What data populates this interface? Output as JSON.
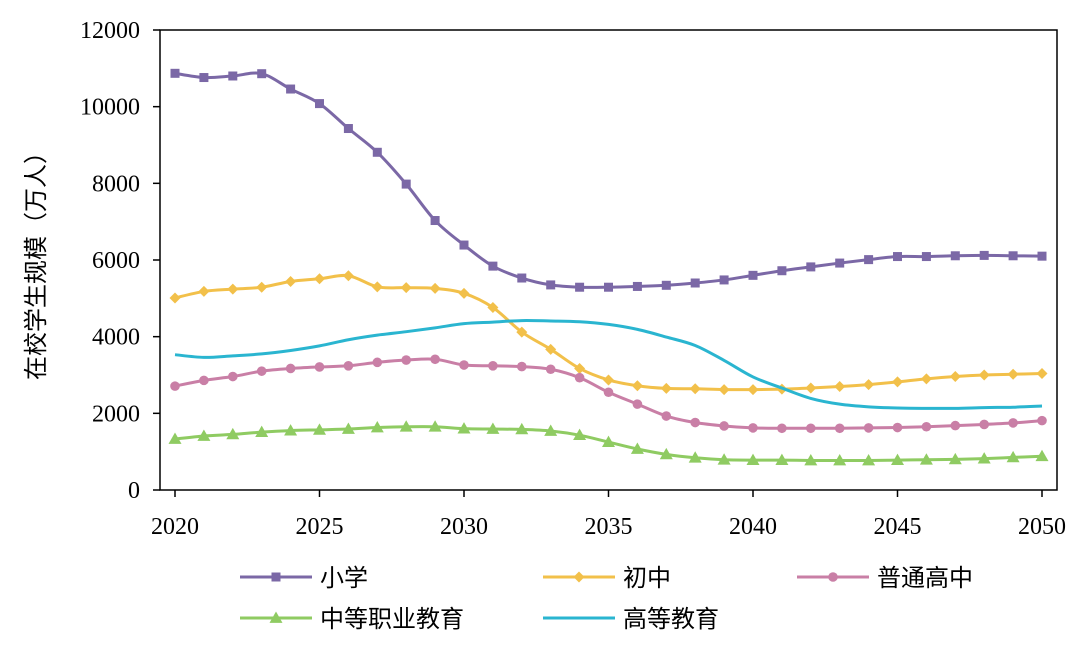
{
  "chart_data": {
    "type": "line",
    "title": "",
    "xlabel": "",
    "ylabel": "在校学生规模（万人）",
    "x": [
      2020,
      2021,
      2022,
      2023,
      2024,
      2025,
      2026,
      2027,
      2028,
      2029,
      2030,
      2031,
      2032,
      2033,
      2034,
      2035,
      2036,
      2037,
      2038,
      2039,
      2040,
      2041,
      2042,
      2043,
      2044,
      2045,
      2046,
      2047,
      2048,
      2049,
      2050
    ],
    "xticks": [
      "2020",
      "2025",
      "2030",
      "2035",
      "2040",
      "2045",
      "2050"
    ],
    "yticks": [
      "0",
      "2000",
      "4000",
      "6000",
      "8000",
      "10000",
      "12000"
    ],
    "xlim": [
      2020,
      2050
    ],
    "ylim": [
      0,
      12000
    ],
    "grid": false,
    "legend_position": "bottom",
    "series": [
      {
        "name": "小学",
        "marker": "square",
        "color": "#7B68A6",
        "values": [
          10870,
          10760,
          10800,
          10860,
          10460,
          10080,
          9430,
          8810,
          7980,
          7030,
          6390,
          5840,
          5530,
          5350,
          5290,
          5290,
          5310,
          5340,
          5400,
          5480,
          5600,
          5720,
          5820,
          5920,
          6010,
          6090,
          6090,
          6110,
          6120,
          6110,
          6100
        ]
      },
      {
        "name": "初中",
        "marker": "diamond",
        "color": "#F2C04A",
        "values": [
          5010,
          5180,
          5240,
          5290,
          5440,
          5510,
          5590,
          5300,
          5280,
          5260,
          5130,
          4760,
          4120,
          3670,
          3170,
          2870,
          2720,
          2650,
          2640,
          2620,
          2620,
          2630,
          2660,
          2700,
          2750,
          2820,
          2900,
          2960,
          3000,
          3020,
          3040
        ]
      },
      {
        "name": "普通高中",
        "marker": "circle",
        "color": "#C97FA6",
        "values": [
          2710,
          2860,
          2960,
          3100,
          3170,
          3210,
          3240,
          3330,
          3390,
          3410,
          3260,
          3240,
          3220,
          3150,
          2930,
          2550,
          2240,
          1930,
          1760,
          1670,
          1620,
          1610,
          1610,
          1610,
          1620,
          1630,
          1650,
          1680,
          1710,
          1750,
          1810
        ]
      },
      {
        "name": "中等职业教育",
        "marker": "triangle",
        "color": "#8FCB62",
        "values": [
          1330,
          1410,
          1450,
          1510,
          1550,
          1570,
          1590,
          1630,
          1650,
          1650,
          1600,
          1590,
          1580,
          1540,
          1430,
          1250,
          1070,
          930,
          840,
          790,
          780,
          780,
          770,
          770,
          770,
          780,
          790,
          800,
          820,
          850,
          880
        ]
      },
      {
        "name": "高等教育",
        "marker": "none",
        "color": "#2AB5D0",
        "values": [
          3530,
          3460,
          3500,
          3550,
          3640,
          3760,
          3920,
          4040,
          4130,
          4230,
          4340,
          4380,
          4420,
          4410,
          4390,
          4320,
          4190,
          3990,
          3770,
          3380,
          2950,
          2660,
          2390,
          2240,
          2170,
          2140,
          2130,
          2130,
          2150,
          2160,
          2190
        ]
      }
    ]
  }
}
